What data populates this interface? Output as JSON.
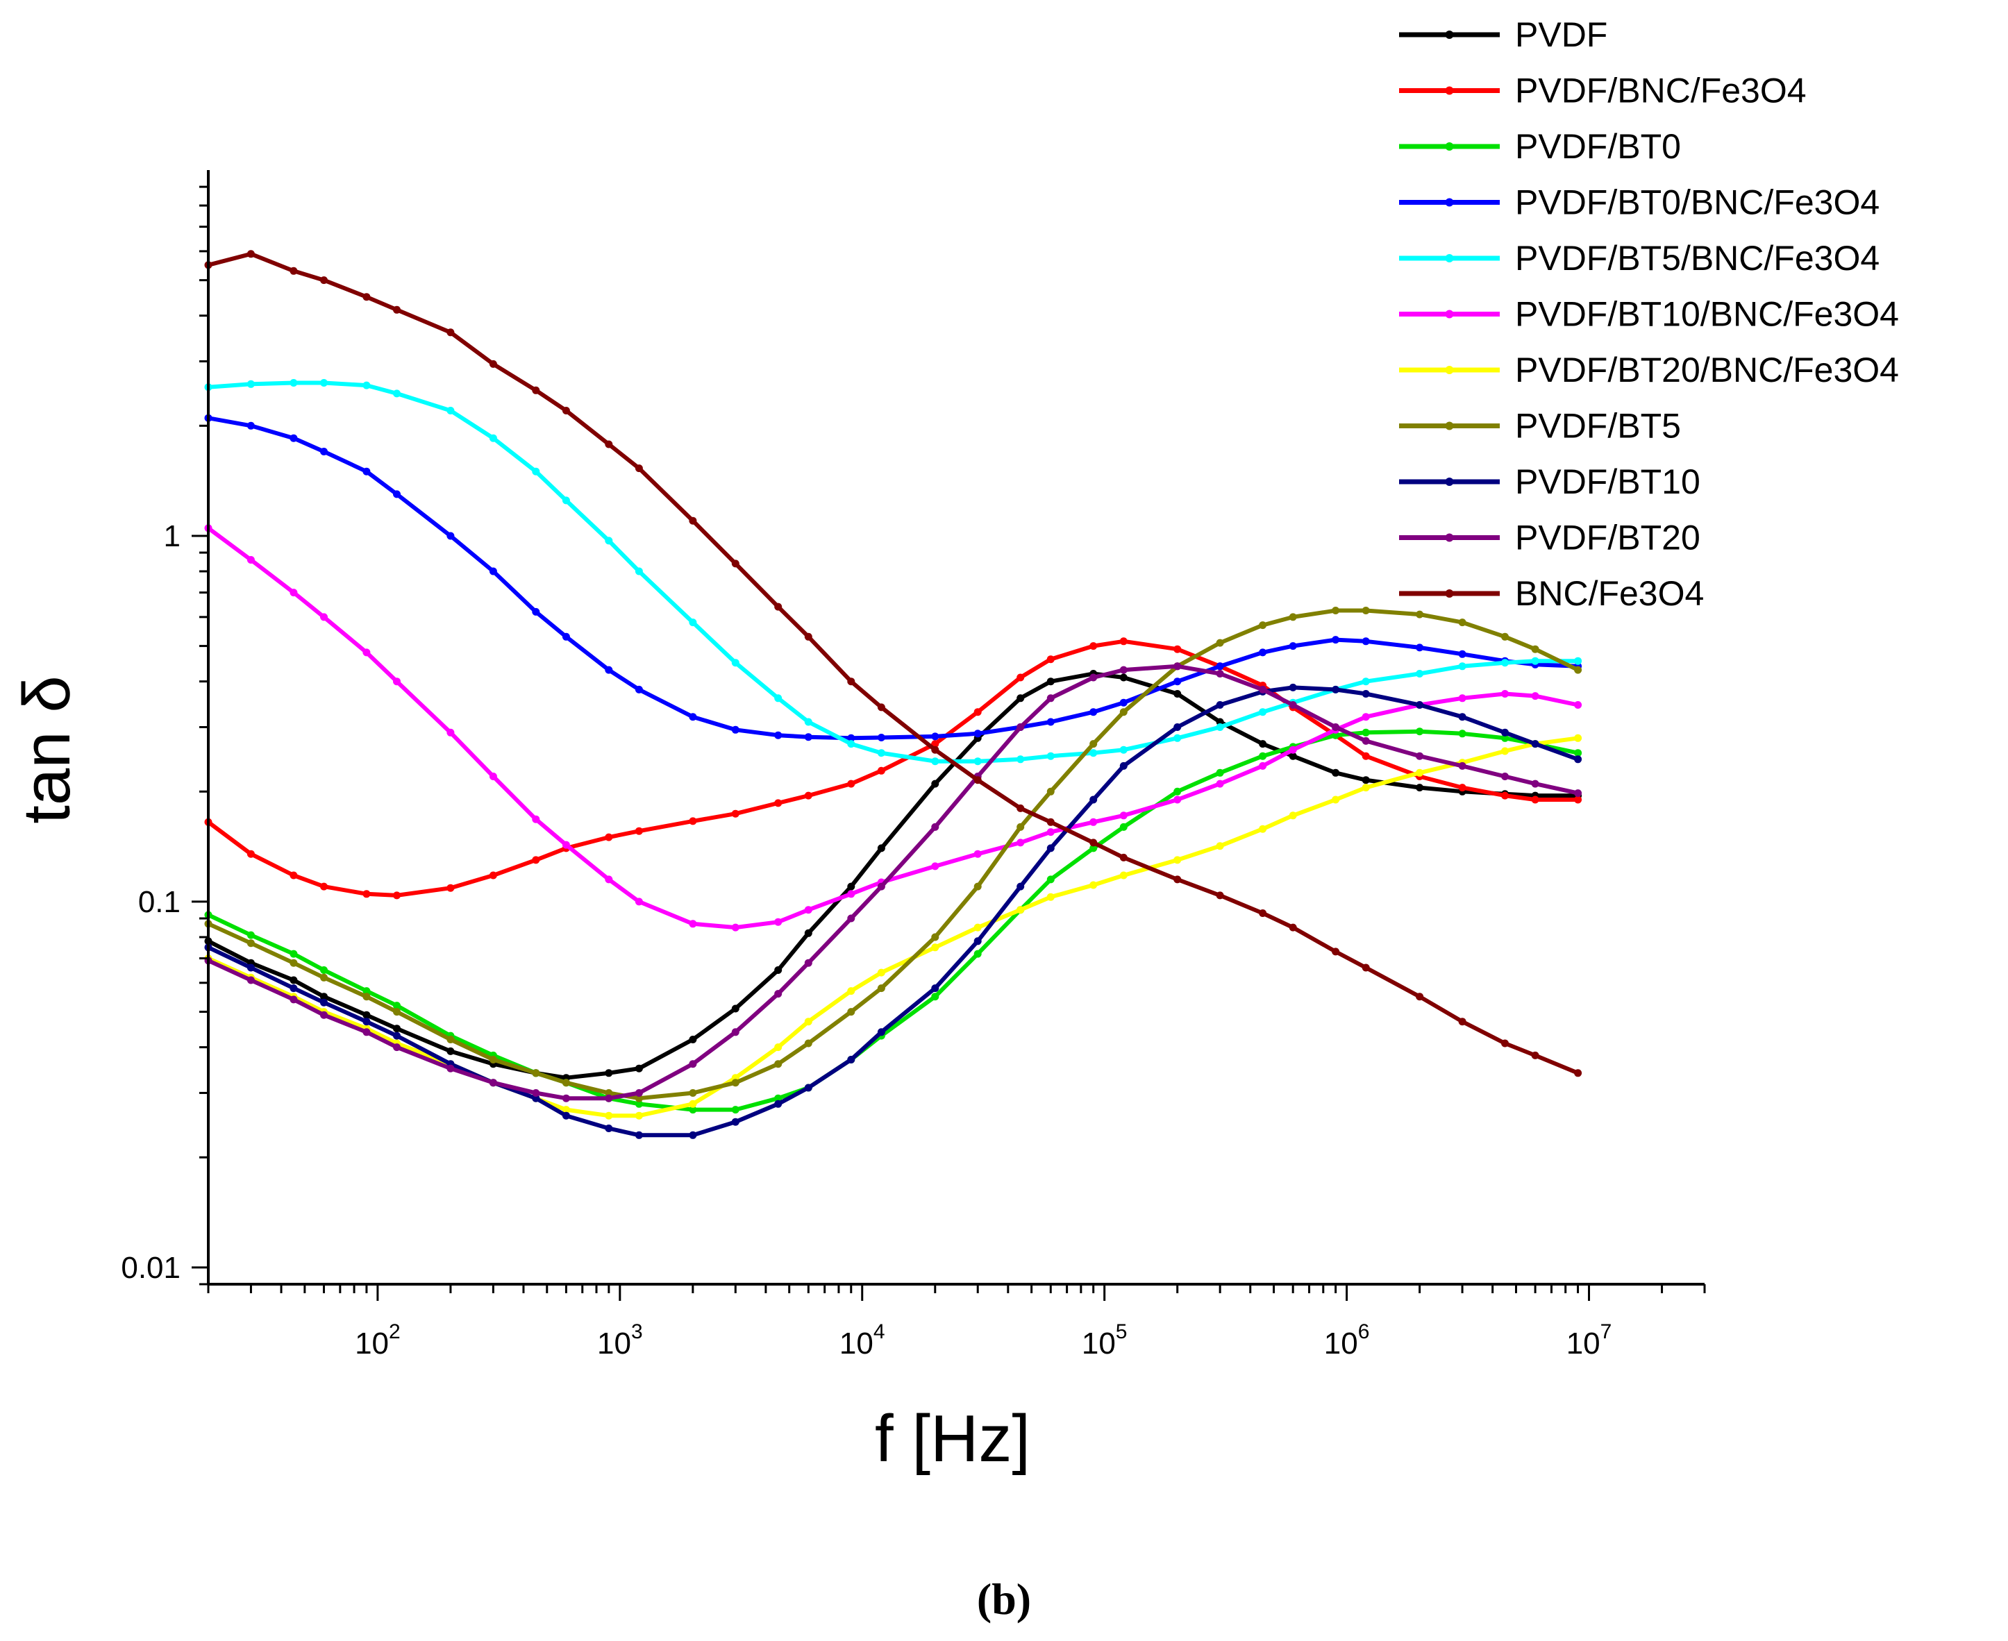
{
  "caption": "(b)",
  "chart_data": {
    "type": "line",
    "title": "",
    "xlabel": "f [Hz]",
    "ylabel": "tan δ",
    "xscale": "log",
    "yscale": "log",
    "xlim": [
      20,
      30000000
    ],
    "ylim": [
      0.009,
      10
    ],
    "grid": false,
    "legend_position": "top-right",
    "x_ticks": [
      {
        "value": 100,
        "base": "10",
        "exp": "2"
      },
      {
        "value": 1000,
        "base": "10",
        "exp": "3"
      },
      {
        "value": 10000,
        "base": "10",
        "exp": "4"
      },
      {
        "value": 100000,
        "base": "10",
        "exp": "5"
      },
      {
        "value": 1000000,
        "base": "10",
        "exp": "6"
      },
      {
        "value": 10000000,
        "base": "10",
        "exp": "7"
      }
    ],
    "y_ticks": [
      {
        "value": 0.01,
        "label": "0.01"
      },
      {
        "value": 0.1,
        "label": "0.1"
      },
      {
        "value": 1,
        "label": "1"
      }
    ],
    "x": [
      20,
      30,
      45,
      60,
      90,
      120,
      200,
      300,
      450,
      600,
      900,
      1200,
      2000,
      3000,
      4500,
      6000,
      9000,
      12000,
      20000,
      30000,
      45000,
      60000,
      90000,
      120000,
      200000,
      300000,
      450000,
      600000,
      900000,
      1200000,
      2000000,
      3000000,
      4500000,
      6000000,
      9000000
    ],
    "series": [
      {
        "name": "PVDF",
        "color": "#000000",
        "values": [
          0.078,
          0.068,
          0.061,
          0.055,
          0.049,
          0.045,
          0.039,
          0.036,
          0.034,
          0.033,
          0.034,
          0.035,
          0.042,
          0.051,
          0.065,
          0.082,
          0.11,
          0.14,
          0.21,
          0.28,
          0.36,
          0.4,
          0.42,
          0.41,
          0.37,
          0.31,
          0.27,
          0.25,
          0.225,
          0.215,
          0.205,
          0.2,
          0.197,
          0.195,
          0.195
        ]
      },
      {
        "name": "PVDF/BNC/Fe3O4",
        "color": "#ff0000",
        "values": [
          0.165,
          0.135,
          0.118,
          0.11,
          0.105,
          0.104,
          0.109,
          0.118,
          0.13,
          0.14,
          0.15,
          0.156,
          0.166,
          0.174,
          0.186,
          0.195,
          0.21,
          0.228,
          0.27,
          0.33,
          0.41,
          0.46,
          0.5,
          0.515,
          0.49,
          0.44,
          0.39,
          0.34,
          0.285,
          0.25,
          0.22,
          0.205,
          0.195,
          0.19,
          0.19
        ]
      },
      {
        "name": "PVDF/BT0",
        "color": "#00e000",
        "values": [
          0.092,
          0.081,
          0.072,
          0.065,
          0.057,
          0.052,
          0.043,
          0.038,
          0.034,
          0.032,
          0.029,
          0.028,
          0.027,
          0.027,
          0.029,
          0.031,
          0.037,
          0.043,
          0.055,
          0.072,
          0.095,
          0.115,
          0.14,
          0.16,
          0.2,
          0.225,
          0.25,
          0.265,
          0.285,
          0.29,
          0.292,
          0.288,
          0.28,
          0.27,
          0.255
        ]
      },
      {
        "name": "PVDF/BT0/BNC/Fe3O4",
        "color": "#0000ff",
        "values": [
          2.1,
          2.0,
          1.85,
          1.7,
          1.5,
          1.3,
          1.0,
          0.8,
          0.62,
          0.53,
          0.43,
          0.38,
          0.32,
          0.295,
          0.285,
          0.282,
          0.28,
          0.281,
          0.283,
          0.288,
          0.3,
          0.31,
          0.33,
          0.35,
          0.4,
          0.44,
          0.48,
          0.5,
          0.52,
          0.515,
          0.495,
          0.475,
          0.455,
          0.445,
          0.44
        ]
      },
      {
        "name": "PVDF/BT5/BNC/Fe3O4",
        "color": "#00ffff",
        "values": [
          2.55,
          2.6,
          2.62,
          2.62,
          2.58,
          2.45,
          2.2,
          1.85,
          1.5,
          1.25,
          0.97,
          0.8,
          0.58,
          0.45,
          0.36,
          0.31,
          0.27,
          0.255,
          0.242,
          0.242,
          0.245,
          0.25,
          0.255,
          0.26,
          0.28,
          0.3,
          0.33,
          0.35,
          0.38,
          0.4,
          0.42,
          0.44,
          0.45,
          0.455,
          0.455
        ]
      },
      {
        "name": "PVDF/BT10/BNC/Fe3O4",
        "color": "#ff00ff",
        "values": [
          1.05,
          0.86,
          0.7,
          0.6,
          0.48,
          0.4,
          0.29,
          0.22,
          0.168,
          0.143,
          0.115,
          0.1,
          0.087,
          0.085,
          0.088,
          0.095,
          0.105,
          0.113,
          0.125,
          0.135,
          0.145,
          0.155,
          0.165,
          0.172,
          0.19,
          0.21,
          0.235,
          0.26,
          0.295,
          0.32,
          0.345,
          0.36,
          0.37,
          0.365,
          0.345
        ]
      },
      {
        "name": "PVDF/BT20/BNC/Fe3O4",
        "color": "#ffff00",
        "values": [
          0.07,
          0.062,
          0.055,
          0.05,
          0.045,
          0.041,
          0.036,
          0.032,
          0.029,
          0.027,
          0.026,
          0.026,
          0.028,
          0.033,
          0.04,
          0.047,
          0.057,
          0.064,
          0.075,
          0.085,
          0.095,
          0.103,
          0.111,
          0.118,
          0.13,
          0.142,
          0.158,
          0.172,
          0.19,
          0.205,
          0.225,
          0.24,
          0.258,
          0.27,
          0.28
        ]
      },
      {
        "name": "PVDF/BT5",
        "color": "#808000",
        "values": [
          0.087,
          0.077,
          0.068,
          0.062,
          0.055,
          0.05,
          0.042,
          0.037,
          0.034,
          0.032,
          0.03,
          0.029,
          0.03,
          0.032,
          0.036,
          0.041,
          0.05,
          0.058,
          0.08,
          0.11,
          0.16,
          0.2,
          0.27,
          0.33,
          0.44,
          0.51,
          0.57,
          0.6,
          0.625,
          0.625,
          0.61,
          0.58,
          0.53,
          0.49,
          0.43
        ]
      },
      {
        "name": "PVDF/BT10",
        "color": "#000080",
        "values": [
          0.075,
          0.066,
          0.058,
          0.053,
          0.047,
          0.043,
          0.036,
          0.032,
          0.029,
          0.026,
          0.024,
          0.023,
          0.023,
          0.025,
          0.028,
          0.031,
          0.037,
          0.044,
          0.058,
          0.078,
          0.11,
          0.14,
          0.19,
          0.235,
          0.3,
          0.345,
          0.375,
          0.385,
          0.38,
          0.37,
          0.345,
          0.32,
          0.29,
          0.27,
          0.245
        ]
      },
      {
        "name": "PVDF/BT20",
        "color": "#800080",
        "values": [
          0.069,
          0.061,
          0.054,
          0.049,
          0.044,
          0.04,
          0.035,
          0.032,
          0.03,
          0.029,
          0.029,
          0.03,
          0.036,
          0.044,
          0.056,
          0.068,
          0.09,
          0.11,
          0.16,
          0.22,
          0.3,
          0.36,
          0.41,
          0.43,
          0.44,
          0.42,
          0.38,
          0.345,
          0.3,
          0.275,
          0.25,
          0.235,
          0.22,
          0.21,
          0.198
        ]
      },
      {
        "name": "BNC/Fe3O4",
        "color": "#800000",
        "values": [
          5.5,
          5.9,
          5.3,
          5.0,
          4.5,
          4.15,
          3.6,
          2.95,
          2.5,
          2.2,
          1.78,
          1.53,
          1.1,
          0.84,
          0.64,
          0.53,
          0.4,
          0.34,
          0.26,
          0.215,
          0.18,
          0.165,
          0.145,
          0.132,
          0.115,
          0.104,
          0.093,
          0.085,
          0.073,
          0.066,
          0.055,
          0.047,
          0.041,
          0.038,
          0.034
        ]
      }
    ]
  }
}
